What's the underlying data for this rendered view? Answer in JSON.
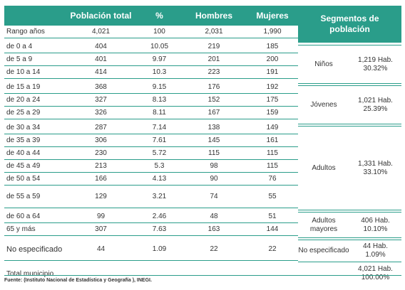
{
  "headers": {
    "population": "Población total",
    "percent": "%",
    "men": "Hombres",
    "women": "Mujeres",
    "segments_line1": "Segmentos de",
    "segments_line2": "población"
  },
  "rows": [
    {
      "label": "Rango años",
      "total": "4,021",
      "pct": "100",
      "men": "2,031",
      "women": "1,990"
    },
    {
      "label": "de 0 a 4",
      "total": "404",
      "pct": "10.05",
      "men": "219",
      "women": "185"
    },
    {
      "label": "de 5 a 9",
      "total": "401",
      "pct": "9.97",
      "men": "201",
      "women": "200"
    },
    {
      "label": "de 10 a 14",
      "total": "414",
      "pct": "10.3",
      "men": "223",
      "women": "191"
    },
    {
      "label": "de 15 a 19",
      "total": "368",
      "pct": "9.15",
      "men": "176",
      "women": "192"
    },
    {
      "label": "de 20 a 24",
      "total": "327",
      "pct": "8.13",
      "men": "152",
      "women": "175"
    },
    {
      "label": "de 25 a 29",
      "total": "326",
      "pct": "8.11",
      "men": "167",
      "women": "159"
    },
    {
      "label": "de 30 a 34",
      "total": "287",
      "pct": "7.14",
      "men": "138",
      "women": "149"
    },
    {
      "label": "de 35 a 39",
      "total": "306",
      "pct": "7.61",
      "men": "145",
      "women": "161"
    },
    {
      "label": "de 40 a 44",
      "total": "230",
      "pct": "5.72",
      "men": "115",
      "women": "115"
    },
    {
      "label": "de 45 a 49",
      "total": "213",
      "pct": "5.3",
      "men": "98",
      "women": "115"
    },
    {
      "label": "de 50 a 54",
      "total": "166",
      "pct": "4.13",
      "men": "90",
      "women": "76"
    },
    {
      "label": "de 55 a 59",
      "total": "129",
      "pct": "3.21",
      "men": "74",
      "women": "55"
    },
    {
      "label": "de 60 a 64",
      "total": "99",
      "pct": "2.46",
      "men": "48",
      "women": "51"
    },
    {
      "label": "65 y más",
      "total": "307",
      "pct": "7.63",
      "men": "163",
      "women": "144"
    },
    {
      "label": "No especificado",
      "total": "44",
      "pct": "1.09",
      "men": "22",
      "women": "22"
    }
  ],
  "segments": [
    {
      "name": "Niños",
      "count": "1,219 Hab.",
      "pct": "30.32%"
    },
    {
      "name": "Jóvenes",
      "count": "1,021 Hab.",
      "pct": "25.39%"
    },
    {
      "name": "Adultos",
      "count": "1,331 Hab.",
      "pct": "33.10%"
    },
    {
      "name": "Adultos mayores",
      "count": "406 Hab.",
      "pct": "10.10%"
    },
    {
      "name": "No especificado",
      "count": "44 Hab.",
      "pct": "1.09%"
    }
  ],
  "total": {
    "label": "Total municipio",
    "count": "4,021 Hab.",
    "pct": "100.00%"
  },
  "source": "Fuente: (Instituto Nacional de Estadística y Geografía ), INEGI.",
  "colors": {
    "accent": "#2a9d8a"
  }
}
